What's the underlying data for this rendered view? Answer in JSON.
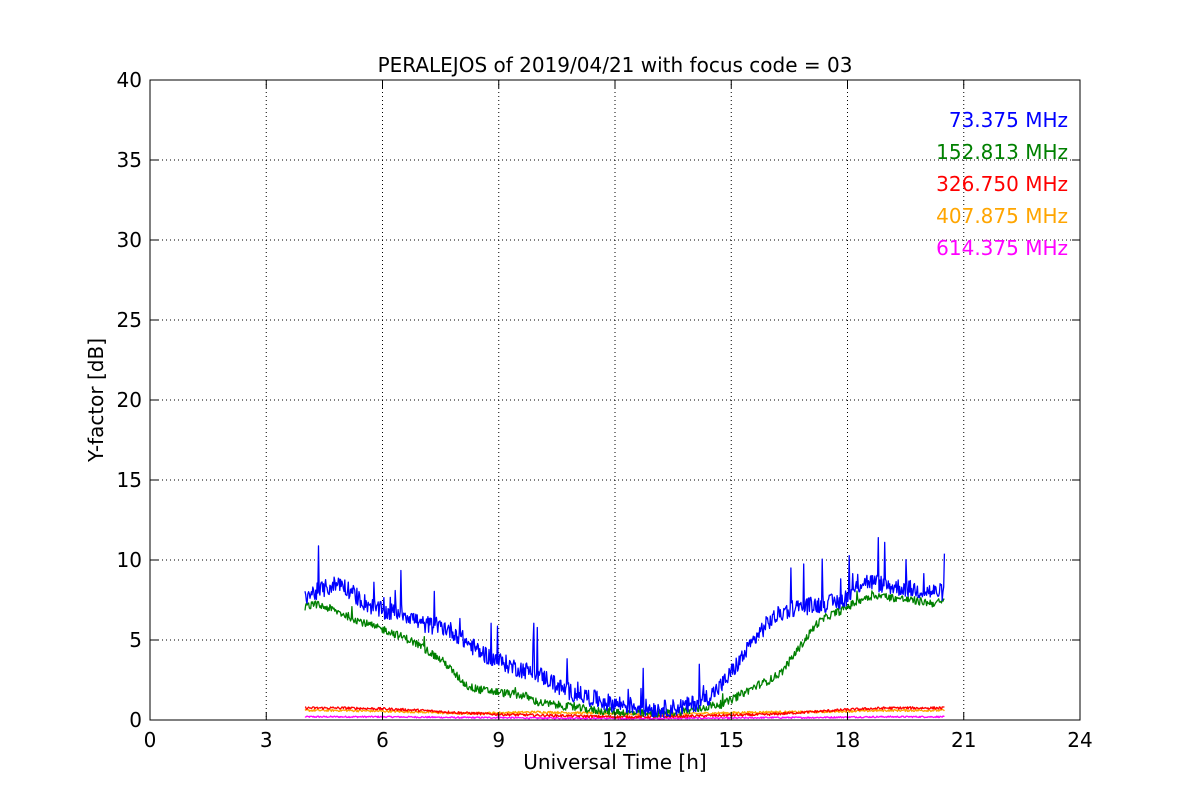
{
  "chart_data": {
    "type": "line",
    "title": "PERALEJOS of 2019/04/21 with focus code = 03",
    "xlabel": "Universal Time [h]",
    "ylabel": "Y-factor [dB]",
    "xlim": [
      0,
      24
    ],
    "ylim": [
      0,
      40
    ],
    "xticks": [
      0,
      3,
      6,
      9,
      12,
      15,
      18,
      21,
      24
    ],
    "yticks": [
      0,
      5,
      10,
      15,
      20,
      25,
      30,
      35,
      40
    ],
    "grid": true,
    "legend_position": "top-right",
    "series": [
      {
        "name": "73.375 MHz",
        "color": "#0000ff",
        "x": [
          4.0,
          4.3,
          4.6,
          4.9,
          5.2,
          5.5,
          5.8,
          6.1,
          6.4,
          6.7,
          7.0,
          7.3,
          7.6,
          7.9,
          8.2,
          8.5,
          8.8,
          9.1,
          9.4,
          9.7,
          10.0,
          10.3,
          10.6,
          10.9,
          11.2,
          11.5,
          11.8,
          12.1,
          12.4,
          12.7,
          13.0,
          13.3,
          13.6,
          13.9,
          14.2,
          14.5,
          14.8,
          15.1,
          15.4,
          15.7,
          16.0,
          16.3,
          16.6,
          16.9,
          17.2,
          17.5,
          17.8,
          18.1,
          18.4,
          18.7,
          19.0,
          19.3,
          19.6,
          19.9,
          20.2,
          20.5
        ],
        "y": [
          7.8,
          8.0,
          8.3,
          8.6,
          8.0,
          7.4,
          7.0,
          6.7,
          6.8,
          6.5,
          6.0,
          5.9,
          5.8,
          5.4,
          4.8,
          4.3,
          3.9,
          3.6,
          3.3,
          3.1,
          2.9,
          2.5,
          2.0,
          1.7,
          1.5,
          1.3,
          1.1,
          1.0,
          0.9,
          0.8,
          0.7,
          0.7,
          0.8,
          0.9,
          1.2,
          1.6,
          2.3,
          3.3,
          4.3,
          5.4,
          6.2,
          6.7,
          7.0,
          7.1,
          7.2,
          7.3,
          7.4,
          7.9,
          8.7,
          8.6,
          8.4,
          8.3,
          8.2,
          8.1,
          8.0,
          8.0
        ],
        "noise": 0.55
      },
      {
        "name": "152.813 MHz",
        "color": "#008000",
        "x": [
          4.0,
          4.3,
          4.6,
          4.9,
          5.2,
          5.5,
          5.8,
          6.1,
          6.4,
          6.7,
          7.0,
          7.3,
          7.6,
          7.9,
          8.2,
          8.5,
          8.8,
          9.1,
          9.4,
          9.7,
          10.0,
          10.3,
          10.6,
          10.9,
          11.2,
          11.5,
          11.8,
          12.1,
          12.4,
          12.7,
          13.0,
          13.3,
          13.6,
          13.9,
          14.2,
          14.5,
          14.8,
          15.1,
          15.4,
          15.7,
          16.0,
          16.3,
          16.6,
          16.9,
          17.2,
          17.5,
          17.8,
          18.1,
          18.4,
          18.7,
          19.0,
          19.3,
          19.6,
          19.9,
          20.2,
          20.5
        ],
        "y": [
          7.1,
          7.2,
          7.0,
          6.7,
          6.4,
          6.1,
          5.8,
          5.6,
          5.3,
          5.0,
          4.6,
          4.1,
          3.6,
          2.8,
          2.1,
          1.9,
          1.8,
          1.7,
          1.6,
          1.5,
          1.1,
          1.0,
          0.9,
          0.8,
          0.7,
          0.6,
          0.55,
          0.5,
          0.45,
          0.4,
          0.4,
          0.45,
          0.5,
          0.6,
          0.7,
          0.9,
          1.0,
          1.4,
          1.8,
          2.2,
          2.5,
          3.0,
          4.0,
          5.0,
          6.0,
          6.5,
          6.8,
          7.2,
          7.6,
          7.8,
          7.7,
          7.6,
          7.5,
          7.4,
          7.3,
          7.4
        ],
        "noise": 0.25
      },
      {
        "name": "326.750 MHz",
        "color": "#ff0000",
        "x": [
          4.0,
          5.0,
          6.0,
          7.0,
          8.0,
          9.0,
          10.0,
          11.0,
          12.0,
          13.0,
          14.0,
          15.0,
          16.0,
          17.0,
          18.0,
          19.0,
          20.0,
          20.5
        ],
        "y": [
          0.75,
          0.75,
          0.7,
          0.6,
          0.45,
          0.35,
          0.3,
          0.25,
          0.2,
          0.2,
          0.25,
          0.3,
          0.35,
          0.5,
          0.65,
          0.75,
          0.75,
          0.75
        ],
        "noise": 0.08
      },
      {
        "name": "407.875 MHz",
        "color": "#ffa500",
        "x": [
          4.0,
          5.0,
          6.0,
          7.0,
          8.0,
          9.0,
          10.0,
          11.0,
          12.0,
          13.0,
          14.0,
          15.0,
          16.0,
          17.0,
          18.0,
          19.0,
          20.0,
          20.5
        ],
        "y": [
          0.6,
          0.6,
          0.55,
          0.5,
          0.4,
          0.45,
          0.5,
          0.45,
          0.4,
          0.35,
          0.4,
          0.45,
          0.5,
          0.5,
          0.55,
          0.6,
          0.6,
          0.6
        ],
        "noise": 0.07
      },
      {
        "name": "614.375 MHz",
        "color": "#ff00ff",
        "x": [
          4.0,
          5.0,
          6.0,
          7.0,
          8.0,
          9.0,
          10.0,
          11.0,
          12.0,
          13.0,
          14.0,
          15.0,
          16.0,
          17.0,
          18.0,
          19.0,
          20.0,
          20.5
        ],
        "y": [
          0.2,
          0.2,
          0.2,
          0.18,
          0.15,
          0.15,
          0.12,
          0.12,
          0.1,
          0.1,
          0.12,
          0.12,
          0.15,
          0.15,
          0.18,
          0.2,
          0.2,
          0.2
        ],
        "noise": 0.05
      }
    ]
  }
}
